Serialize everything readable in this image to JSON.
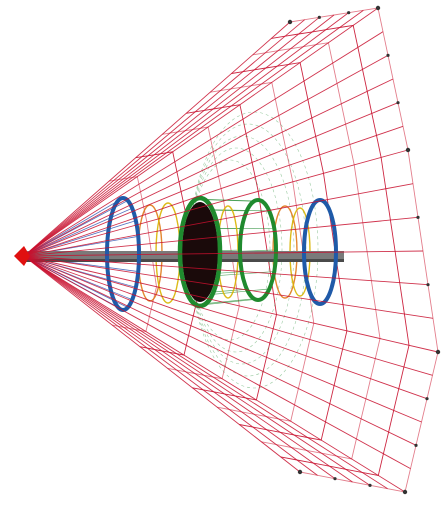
{
  "image": {
    "subject": "climbing-net-cone-structure",
    "colors": {
      "background": "#ffffff",
      "net": "#c8102e",
      "net_light": "#e07080",
      "blue_ring": "#1f5aa8",
      "green_ring": "#1f8a2e",
      "yellow_ring": "#d8b400",
      "orange_ring": "#e07a1a",
      "mast": "#7a7a7a",
      "mast_dark": "#4a4a4a",
      "apex": "#e01010",
      "anchor": "#333333",
      "blue_lines": "#2a4fb0",
      "green_lines": "#1f8a2e"
    }
  }
}
